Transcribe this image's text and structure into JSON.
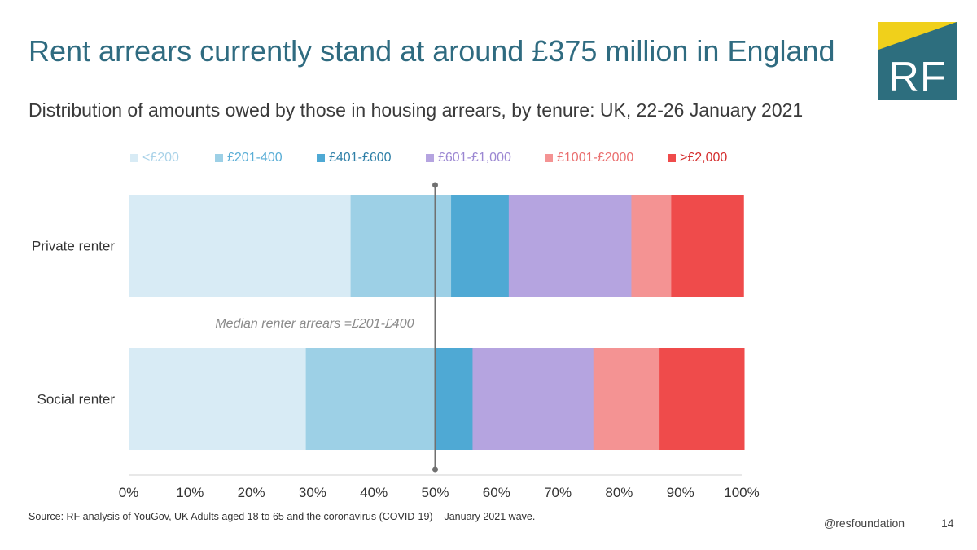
{
  "title": "Rent arrears currently stand at around £375 million in England",
  "subtitle": "Distribution of amounts owed by those in housing arrears, by tenure: UK, 22-26 January 2021",
  "logo": {
    "text": "RF",
    "colors": {
      "teal": "#2d6e7e",
      "yellow": "#f0d01b"
    }
  },
  "chart_data": {
    "type": "bar",
    "orientation": "horizontal",
    "stacked": true,
    "categories": [
      "Private renter",
      "Social renter"
    ],
    "series": [
      {
        "name": "<£200",
        "color": "#d8ebf5",
        "legend_text_color": "#a9d2e8",
        "values": [
          36.2,
          28.9
        ]
      },
      {
        "name": "£201-400",
        "color": "#9dd0e6",
        "legend_text_color": "#5aaed6",
        "values": [
          16.4,
          21.1
        ]
      },
      {
        "name": "£401-£600",
        "color": "#4fa9d4",
        "legend_text_color": "#2e7fa7",
        "values": [
          9.4,
          6.1
        ]
      },
      {
        "name": "£601-£1,000",
        "color": "#b5a4e0",
        "legend_text_color": "#9b87d2",
        "values": [
          20.0,
          19.7
        ]
      },
      {
        "name": "£1001-£2000",
        "color": "#f49393",
        "legend_text_color": "#ea6f6f",
        "values": [
          6.5,
          10.8
        ]
      },
      {
        "name": ">£2,000",
        "color": "#ef4b4b",
        "legend_text_color": "#d42c2c",
        "values": [
          11.8,
          13.8
        ]
      }
    ],
    "xlim": [
      0,
      100
    ],
    "xticks": [
      "0%",
      "10%",
      "20%",
      "30%",
      "40%",
      "50%",
      "60%",
      "70%",
      "80%",
      "90%",
      "100%"
    ],
    "grid": false,
    "legend_position": "top",
    "reference_line": {
      "x": 50,
      "label": "Median renter arrears =£201-£400"
    }
  },
  "footer": {
    "source": "Source: RF analysis of YouGov, UK Adults aged 18 to 65 and the coronavirus (COVID-19) – January 2021 wave.",
    "handle": "@resfoundation",
    "page": "14"
  }
}
